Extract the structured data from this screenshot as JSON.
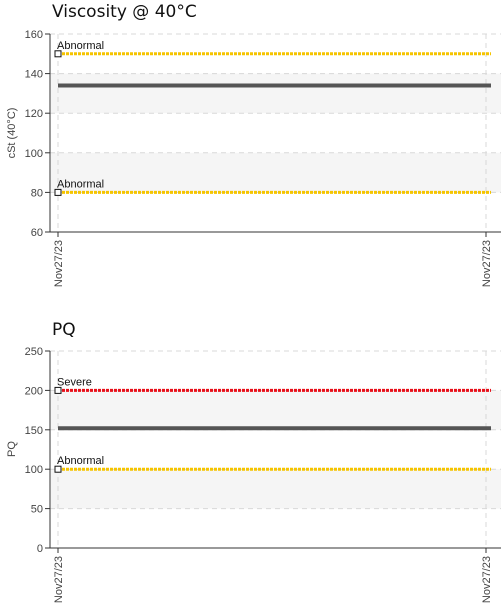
{
  "chart_data": [
    {
      "type": "line",
      "title": "Viscosity @ 40°C",
      "ylabel": "cSt (40°C)",
      "xlabel": "",
      "ylim": [
        60,
        160
      ],
      "yticks": [
        60,
        80,
        100,
        120,
        140,
        160
      ],
      "x_tick_labels": [
        "Nov27/23",
        "Nov27/23"
      ],
      "grid": true,
      "bands": [
        [
          80,
          100
        ],
        [
          120,
          140
        ]
      ],
      "series": [
        {
          "values": [
            134,
            134
          ],
          "color": "#555555"
        }
      ],
      "thresholds": [
        {
          "label": "Abnormal",
          "value": 150,
          "color": "#f5c400"
        },
        {
          "label": "Abnormal",
          "value": 80,
          "color": "#f5c400"
        }
      ]
    },
    {
      "type": "line",
      "title": "PQ",
      "ylabel": "PQ",
      "xlabel": "",
      "ylim": [
        0,
        250
      ],
      "yticks": [
        0,
        50,
        100,
        150,
        200,
        250
      ],
      "x_tick_labels": [
        "Nov27/23",
        "Nov27/23"
      ],
      "grid": true,
      "bands": [
        [
          50,
          100
        ],
        [
          150,
          200
        ]
      ],
      "series": [
        {
          "values": [
            152,
            152
          ],
          "color": "#555555"
        }
      ],
      "thresholds": [
        {
          "label": "Severe",
          "value": 200,
          "color": "#e8101a"
        },
        {
          "label": "Abnormal",
          "value": 100,
          "color": "#f5c400"
        }
      ]
    }
  ]
}
